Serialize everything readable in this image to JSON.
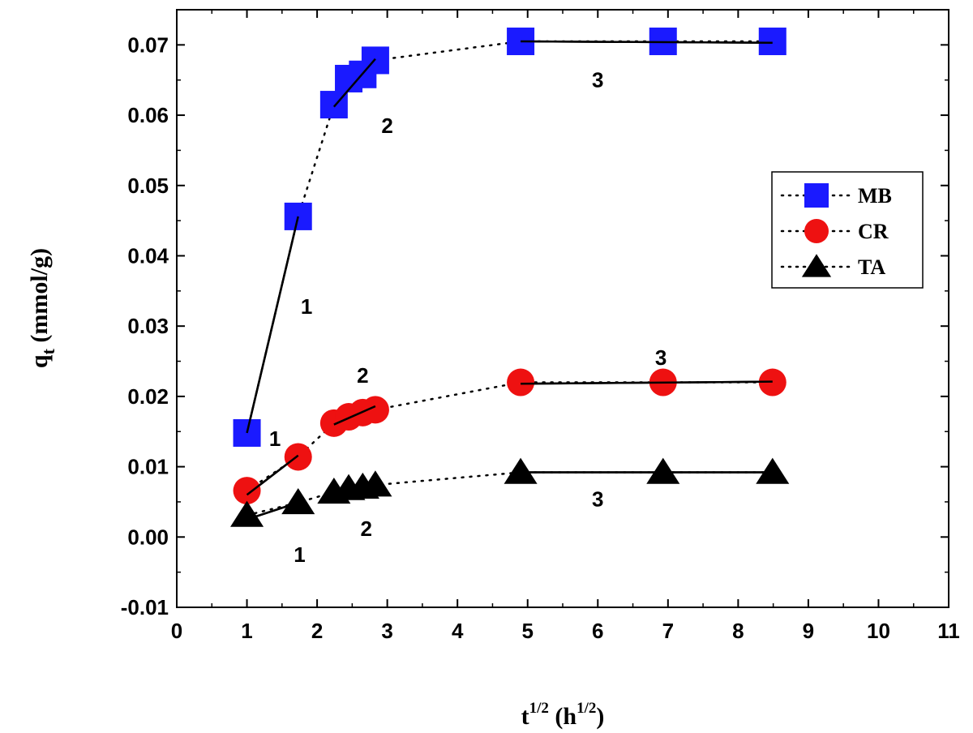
{
  "chart_data": {
    "type": "scatter",
    "xlabel": "t",
    "xlabel_sup": "1/2",
    "xlabel_unit_open": " (h",
    "xlabel_unit_sup": "1/2",
    "xlabel_unit_close": ")",
    "ylabel": "q",
    "ylabel_sub": "t",
    "ylabel_unit": " (mmol/g)",
    "xlim": [
      0,
      11
    ],
    "ylim": [
      -0.01,
      0.075
    ],
    "x_ticks": [
      "0",
      "1",
      "2",
      "3",
      "4",
      "5",
      "6",
      "7",
      "8",
      "9",
      "10",
      "11"
    ],
    "y_ticks": [
      "-0.01",
      "0.00",
      "0.01",
      "0.02",
      "0.03",
      "0.04",
      "0.05",
      "0.06",
      "0.07"
    ],
    "legend_position": "right",
    "series": [
      {
        "name": "MB",
        "marker": "square",
        "color": "#1a1aff",
        "x": [
          1.0,
          1.73,
          2.24,
          2.45,
          2.65,
          2.83,
          4.9,
          6.93,
          8.49
        ],
        "y": [
          0.0148,
          0.0456,
          0.0615,
          0.0652,
          0.0658,
          0.0678,
          0.0705,
          0.0705,
          0.0705
        ],
        "fit_lines": [
          {
            "x": [
              1.0,
              1.73
            ],
            "y": [
              0.0148,
              0.0456
            ]
          },
          {
            "x": [
              2.24,
              2.83
            ],
            "y": [
              0.0612,
              0.068
            ]
          },
          {
            "x": [
              4.9,
              8.49
            ],
            "y": [
              0.0705,
              0.0703
            ]
          }
        ]
      },
      {
        "name": "CR",
        "marker": "circle",
        "color": "#ee1111",
        "x": [
          1.0,
          1.73,
          2.24,
          2.45,
          2.65,
          2.83,
          4.9,
          6.93,
          8.49
        ],
        "y": [
          0.0066,
          0.0114,
          0.0162,
          0.0171,
          0.0177,
          0.0181,
          0.022,
          0.022,
          0.022
        ],
        "fit_lines": [
          {
            "x": [
              1.0,
              1.73
            ],
            "y": [
              0.006,
              0.0116
            ]
          },
          {
            "x": [
              2.24,
              2.83
            ],
            "y": [
              0.016,
              0.0186
            ]
          },
          {
            "x": [
              4.9,
              8.49
            ],
            "y": [
              0.0218,
              0.0221
            ]
          }
        ]
      },
      {
        "name": "TA",
        "marker": "triangle",
        "color": "#000000",
        "x": [
          1.0,
          1.73,
          2.24,
          2.45,
          2.65,
          2.83,
          4.9,
          6.93,
          8.49
        ],
        "y": [
          0.0031,
          0.0049,
          0.0064,
          0.0069,
          0.0071,
          0.0074,
          0.0092,
          0.0092,
          0.0092
        ],
        "fit_lines": [
          {
            "x": [
              1.0,
              1.73
            ],
            "y": [
              0.0025,
              0.0049
            ]
          },
          {
            "x": [
              2.24,
              2.83
            ],
            "y": [
              0.0063,
              0.0076
            ]
          },
          {
            "x": [
              4.9,
              8.49
            ],
            "y": [
              0.0092,
              0.0092
            ]
          }
        ]
      }
    ],
    "annotations": [
      {
        "text": "1",
        "x": 1.85,
        "y": 0.0328
      },
      {
        "text": "2",
        "x": 3.0,
        "y": 0.0585
      },
      {
        "text": "3",
        "x": 6.0,
        "y": 0.065
      },
      {
        "text": "1",
        "x": 1.4,
        "y": 0.014
      },
      {
        "text": "2",
        "x": 2.65,
        "y": 0.023
      },
      {
        "text": "3",
        "x": 6.9,
        "y": 0.0255
      },
      {
        "text": "1",
        "x": 1.75,
        "y": -0.0025
      },
      {
        "text": "2",
        "x": 2.7,
        "y": 0.0012
      },
      {
        "text": "3",
        "x": 6.0,
        "y": 0.0054
      }
    ]
  }
}
